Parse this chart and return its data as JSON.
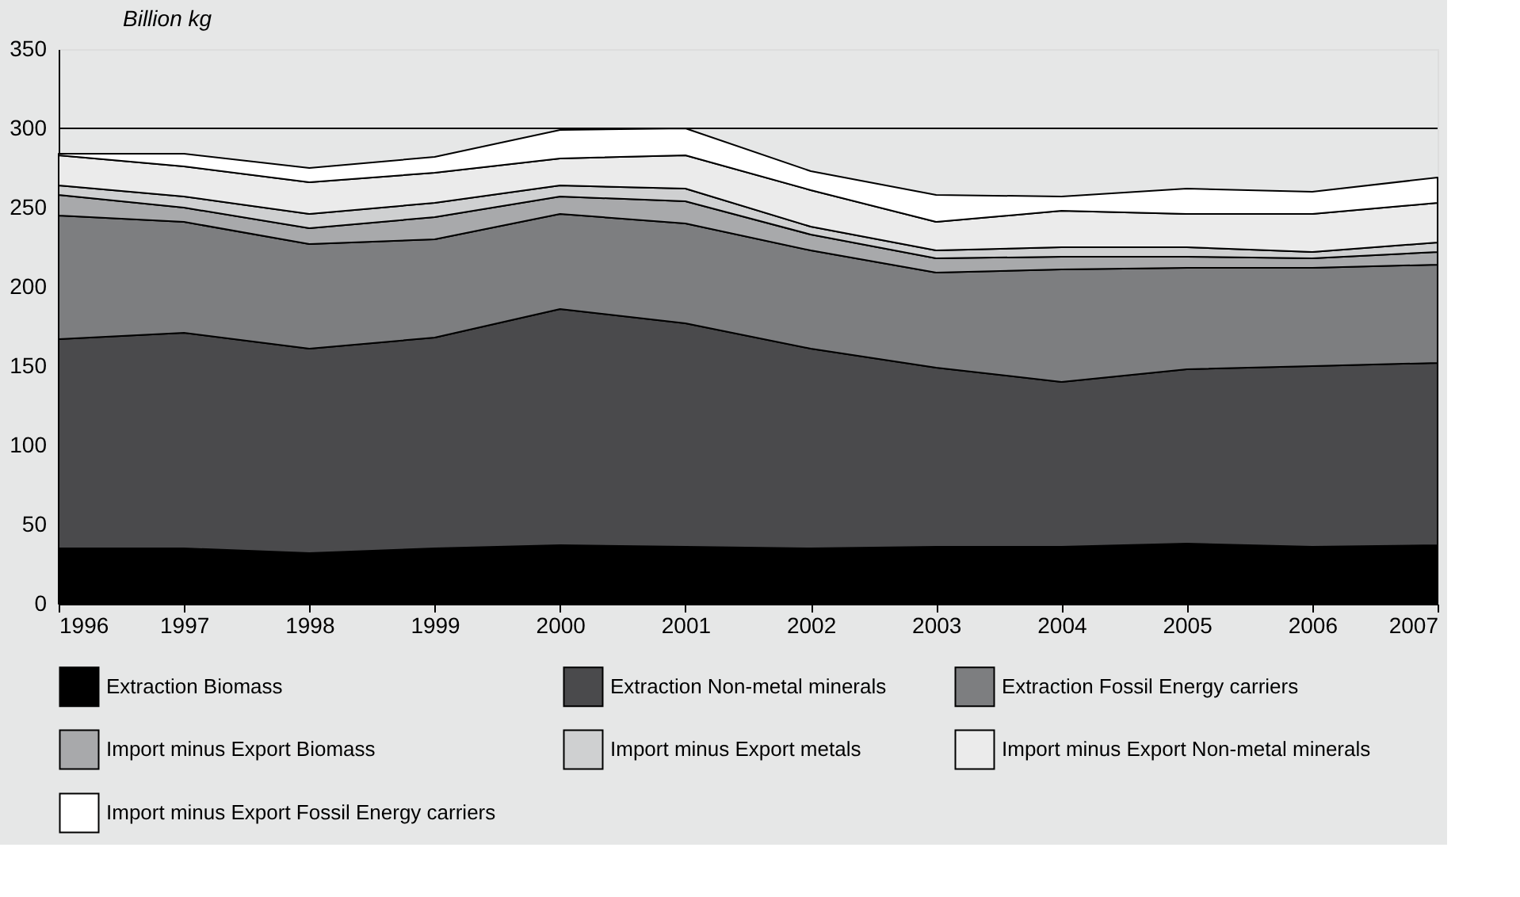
{
  "chart_data": {
    "type": "area",
    "stacked": true,
    "ylabel": "Billion kg",
    "x": [
      1996,
      1997,
      1998,
      1999,
      2000,
      2001,
      2002,
      2003,
      2004,
      2005,
      2006,
      2007
    ],
    "xlim": [
      1996,
      2007
    ],
    "xticks": [
      1996,
      1997,
      1998,
      1999,
      2000,
      2001,
      2002,
      2003,
      2004,
      2005,
      2006,
      2007
    ],
    "ylim": [
      0,
      350
    ],
    "yticks": [
      0,
      50,
      100,
      150,
      200,
      250,
      300,
      350
    ],
    "grid": false,
    "legend": "bottom",
    "ref_lines": [
      {
        "axis": "y",
        "value": 300,
        "color": "#000000"
      }
    ],
    "series": [
      {
        "name": "Extraction Biomass",
        "color": "#000000",
        "values": [
          35,
          35,
          32,
          35,
          37,
          36,
          35,
          36,
          36,
          38,
          36,
          37
        ]
      },
      {
        "name": "Extraction Non-metal minerals",
        "color": "#4a4a4c",
        "values": [
          132,
          136,
          129,
          133,
          149,
          141,
          126,
          113,
          104,
          110,
          114,
          115
        ]
      },
      {
        "name": "Extraction Fossil Energy carriers",
        "color": "#7d7e80",
        "values": [
          78,
          70,
          66,
          62,
          60,
          63,
          62,
          60,
          71,
          64,
          62,
          62
        ]
      },
      {
        "name": "Import minus Export Biomass",
        "color": "#a8a9ab",
        "values": [
          13,
          9,
          10,
          14,
          11,
          14,
          10,
          9,
          8,
          7,
          6,
          8
        ]
      },
      {
        "name": "Import minus Export metals",
        "color": "#cfd0d1",
        "values": [
          6,
          7,
          9,
          9,
          7,
          8,
          5,
          5,
          6,
          6,
          4,
          6
        ]
      },
      {
        "name": "Import minus Export Non-metal minerals",
        "color": "#ebebeb",
        "values": [
          19,
          19,
          20,
          19,
          17,
          21,
          23,
          18,
          23,
          21,
          24,
          25
        ]
      },
      {
        "name": "Import minus Export Fossil Energy carriers",
        "color": "#ffffff",
        "values": [
          1,
          8,
          9,
          10,
          18,
          17,
          12,
          17,
          9,
          16,
          14,
          16
        ]
      }
    ]
  }
}
